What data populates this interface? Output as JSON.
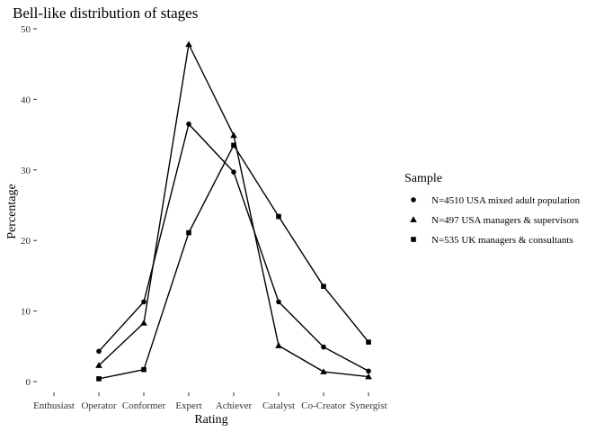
{
  "chart_data": {
    "type": "line",
    "title": "Bell-like distribution of stages",
    "xlabel": "Rating",
    "ylabel": "Percentage",
    "categories": [
      "Enthusiast",
      "Operator",
      "Conformer",
      "Expert",
      "Achiever",
      "Catalyst",
      "Co-Creator",
      "Synergist"
    ],
    "ylim": [
      -2,
      50
    ],
    "yticks": [
      0,
      10,
      20,
      30,
      40,
      50
    ],
    "grid": false,
    "legend": {
      "title": "Sample",
      "position": "right"
    },
    "series": [
      {
        "name": "N=4510 USA mixed adult population",
        "marker": "circle",
        "values": [
          null,
          4.3,
          11.3,
          36.5,
          29.7,
          11.3,
          4.9,
          1.5
        ]
      },
      {
        "name": "N=497 USA managers & supervisors",
        "marker": "triangle",
        "values": [
          null,
          2.3,
          8.3,
          47.8,
          34.9,
          5.1,
          1.4,
          0.7
        ]
      },
      {
        "name": "N=535 UK managers & consultants",
        "marker": "square",
        "values": [
          null,
          0.4,
          1.7,
          21.1,
          33.5,
          23.4,
          13.5,
          5.6
        ]
      }
    ]
  }
}
